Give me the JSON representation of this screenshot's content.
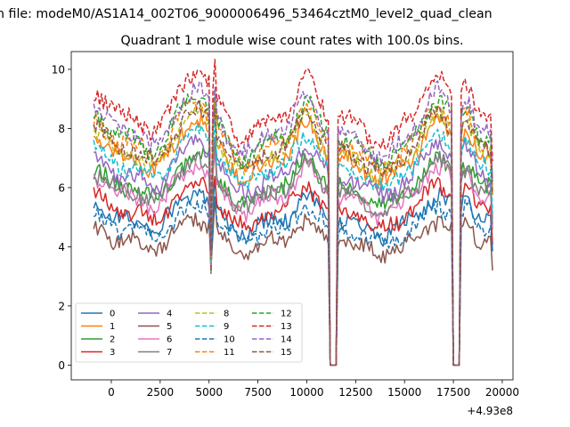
{
  "chart_data": {
    "type": "line",
    "suptitle": "n file: modeM0/AS1A14_002T06_9000006496_53464cztM0_level2_quad_clean",
    "title": "Quadrant 1 module wise count rates with 100.0s bins.",
    "xlabel": "",
    "ylabel": "",
    "offset_text": "+4.93e8",
    "xlim": [
      -2050,
      20550
    ],
    "ylim": [
      -0.5,
      10.6
    ],
    "x_ticks": [
      0,
      2500,
      5000,
      7500,
      10000,
      12500,
      15000,
      17500,
      20000
    ],
    "y_ticks": [
      0,
      2,
      4,
      6,
      8,
      10
    ],
    "x_start": -900,
    "x_end": 19500,
    "x_step": 100,
    "legend_location": "lower-left",
    "legend_columns": 4,
    "series": [
      {
        "name": "0",
        "color": "#1f77b4",
        "dash": "solid",
        "base": 4.9
      },
      {
        "name": "1",
        "color": "#ff7f0e",
        "dash": "solid",
        "base": 7.0
      },
      {
        "name": "2",
        "color": "#2ca02c",
        "dash": "solid",
        "base": 6.0
      },
      {
        "name": "3",
        "color": "#d62728",
        "dash": "solid",
        "base": 5.2
      },
      {
        "name": "4",
        "color": "#9467bd",
        "dash": "solid",
        "base": 6.4
      },
      {
        "name": "5",
        "color": "#8c564b",
        "dash": "solid",
        "base": 4.2
      },
      {
        "name": "6",
        "color": "#e377c2",
        "dash": "solid",
        "base": 5.7
      },
      {
        "name": "7",
        "color": "#7f7f7f",
        "dash": "solid",
        "base": 5.9
      },
      {
        "name": "8",
        "color": "#bcbd22",
        "dash": "dashed",
        "base": 7.2
      },
      {
        "name": "9",
        "color": "#17becf",
        "dash": "dashed",
        "base": 6.7
      },
      {
        "name": "10",
        "color": "#1f77b4",
        "dash": "dashed",
        "base": 4.6
      },
      {
        "name": "11",
        "color": "#ff7f0e",
        "dash": "dashed",
        "base": 7.5
      },
      {
        "name": "12",
        "color": "#2ca02c",
        "dash": "dashed",
        "base": 7.7
      },
      {
        "name": "13",
        "color": "#d62728",
        "dash": "dashed",
        "base": 8.4
      },
      {
        "name": "14",
        "color": "#9467bd",
        "dash": "dashed",
        "base": 7.9
      },
      {
        "name": "15",
        "color": "#8c564b",
        "dash": "dashed",
        "base": 7.3
      }
    ],
    "modulation": {
      "peaks": [
        {
          "x": -800,
          "amp": 0.7,
          "width": 700
        },
        {
          "x": 4300,
          "amp": 1.3,
          "width": 1200
        },
        {
          "x": 10000,
          "amp": 1.2,
          "width": 700
        },
        {
          "x": 16700,
          "amp": 1.2,
          "width": 900
        },
        {
          "x": 18200,
          "amp": 0.9,
          "width": 400
        }
      ],
      "dips": [
        {
          "x": 2300,
          "amp": 0.6,
          "width": 700
        },
        {
          "x": 6800,
          "amp": 0.8,
          "width": 900
        },
        {
          "x": 13800,
          "amp": 0.9,
          "width": 1100
        }
      ],
      "spike_down": {
        "x": 5100,
        "value": 3.1
      },
      "spike_up": {
        "x": 5300,
        "amp": 1.0
      },
      "zero_gaps": [
        [
          11200,
          11500
        ],
        [
          17500,
          17800
        ]
      ]
    }
  }
}
